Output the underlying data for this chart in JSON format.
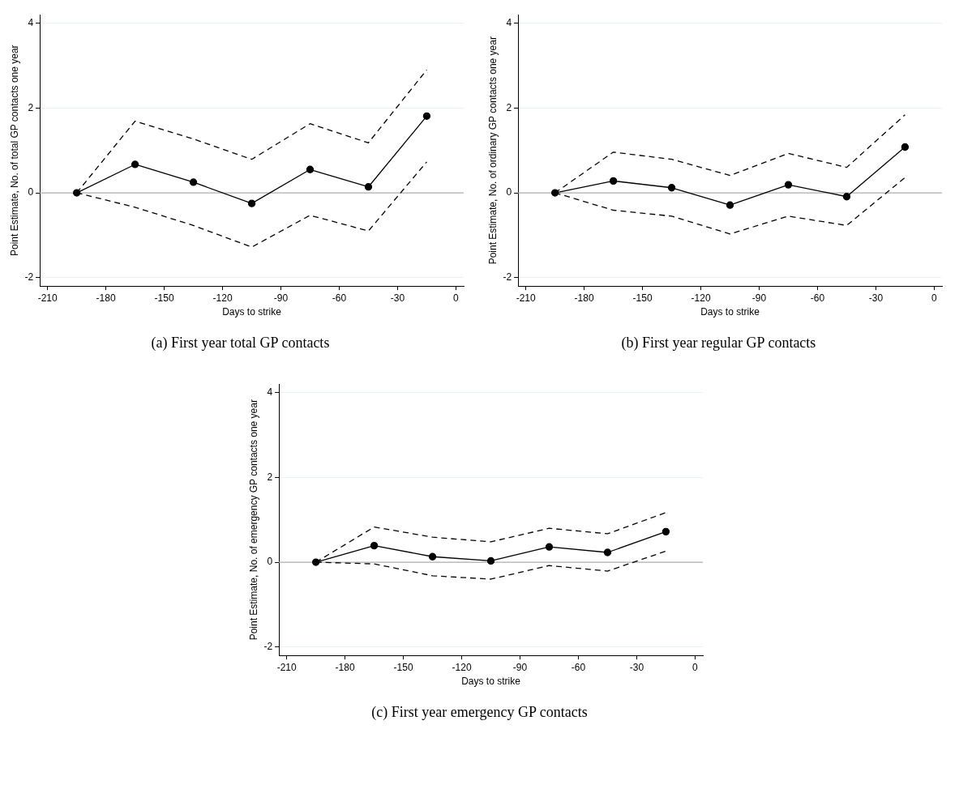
{
  "chart_data": [
    {
      "type": "line",
      "title": "(a) First year total GP contacts",
      "xlabel": "Days to strike",
      "ylabel": "Point Estimate, No. of total GP contacts one year",
      "x": [
        -195,
        -165,
        -135,
        -105,
        -75,
        -45,
        -15
      ],
      "xlim": [
        -214,
        4
      ],
      "xticks": [
        -210,
        -180,
        -150,
        -120,
        -90,
        -60,
        -30,
        0
      ],
      "ylim": [
        -2.2,
        4.2
      ],
      "yticks": [
        -2,
        0,
        2,
        4
      ],
      "grid": "y",
      "legend": false,
      "ref_lines": [
        {
          "axis": "y",
          "value": 0,
          "color": "#b0b0b0"
        }
      ],
      "series": [
        {
          "color": "#000000",
          "values": [
            0,
            0.67,
            0.25,
            -0.25,
            0.55,
            0.14,
            1.81
          ],
          "marker": "circle",
          "line_style": "solid"
        },
        {
          "color": "#000000",
          "values": [
            0,
            1.69,
            1.27,
            0.79,
            1.63,
            1.18,
            2.9
          ],
          "marker": "none",
          "line_style": "dashed"
        },
        {
          "color": "#000000",
          "values": [
            0,
            -0.34,
            -0.77,
            -1.28,
            -0.53,
            -0.9,
            0.73
          ],
          "marker": "none",
          "line_style": "dashed"
        }
      ]
    },
    {
      "type": "line",
      "title": "(b) First year regular GP contacts",
      "xlabel": "Days to strike",
      "ylabel": "Point Estimate, No. of ordinary GP contacts one year",
      "x": [
        -195,
        -165,
        -135,
        -105,
        -75,
        -45,
        -15
      ],
      "xlim": [
        -214,
        4
      ],
      "xticks": [
        -210,
        -180,
        -150,
        -120,
        -90,
        -60,
        -30,
        0
      ],
      "ylim": [
        -2.2,
        4.2
      ],
      "yticks": [
        -2,
        0,
        2,
        4
      ],
      "grid": "y",
      "legend": false,
      "ref_lines": [
        {
          "axis": "y",
          "value": 0,
          "color": "#b0b0b0"
        }
      ],
      "series": [
        {
          "color": "#000000",
          "values": [
            0,
            0.28,
            0.12,
            -0.29,
            0.19,
            -0.09,
            1.08
          ],
          "marker": "circle",
          "line_style": "solid"
        },
        {
          "color": "#000000",
          "values": [
            0,
            0.96,
            0.79,
            0.41,
            0.93,
            0.6,
            1.84
          ],
          "marker": "none",
          "line_style": "dashed"
        },
        {
          "color": "#000000",
          "values": [
            0,
            -0.41,
            -0.55,
            -0.97,
            -0.55,
            -0.77,
            0.36
          ],
          "marker": "none",
          "line_style": "dashed"
        }
      ]
    },
    {
      "type": "line",
      "title": "(c) First year emergency GP contacts",
      "xlabel": "Days to strike",
      "ylabel": "Point Estimate, No. of emergency GP contacts one year",
      "x": [
        -195,
        -165,
        -135,
        -105,
        -75,
        -45,
        -15
      ],
      "xlim": [
        -214,
        4
      ],
      "xticks": [
        -210,
        -180,
        -150,
        -120,
        -90,
        -60,
        -30,
        0
      ],
      "ylim": [
        -2.2,
        4.2
      ],
      "yticks": [
        -2,
        0,
        2,
        4
      ],
      "grid": "y",
      "legend": false,
      "ref_lines": [
        {
          "axis": "y",
          "value": 0,
          "color": "#b0b0b0"
        }
      ],
      "series": [
        {
          "color": "#000000",
          "values": [
            0,
            0.39,
            0.13,
            0.03,
            0.36,
            0.23,
            0.72
          ],
          "marker": "circle",
          "line_style": "solid"
        },
        {
          "color": "#000000",
          "values": [
            0,
            0.83,
            0.59,
            0.48,
            0.8,
            0.67,
            1.17
          ],
          "marker": "none",
          "line_style": "dashed"
        },
        {
          "color": "#000000",
          "values": [
            0,
            -0.04,
            -0.32,
            -0.4,
            -0.08,
            -0.21,
            0.26
          ],
          "marker": "none",
          "line_style": "dashed"
        }
      ]
    }
  ]
}
